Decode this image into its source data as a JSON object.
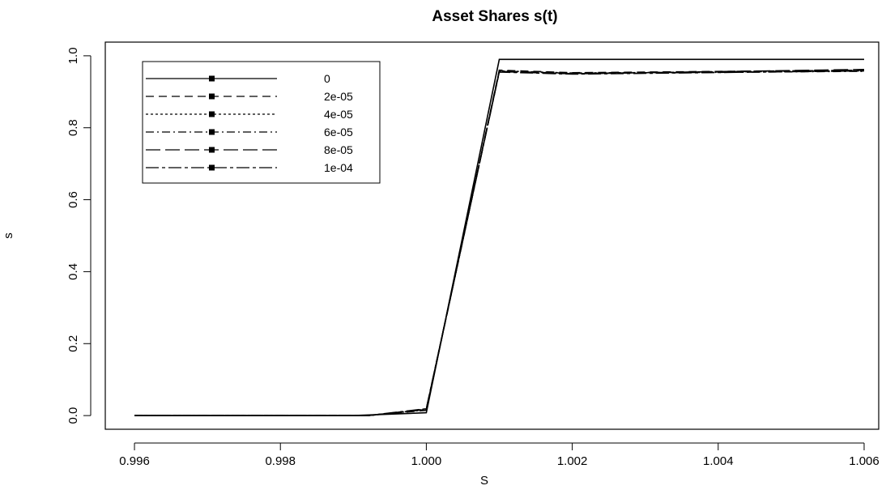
{
  "chart_data": {
    "type": "line",
    "title": "Asset Shares s(t)",
    "xlabel": "S",
    "ylabel": "s",
    "xlim": [
      0.9956,
      1.0062
    ],
    "ylim": [
      -0.038,
      1.038
    ],
    "x_ticks": [
      0.996,
      0.998,
      1.0,
      1.002,
      1.004,
      1.006
    ],
    "x_tick_labels": [
      "0.996",
      "0.998",
      "1.000",
      "1.002",
      "1.004",
      "1.006"
    ],
    "y_ticks": [
      0.0,
      0.2,
      0.4,
      0.6,
      0.8,
      1.0
    ],
    "y_tick_labels": [
      "0.0",
      "0.2",
      "0.4",
      "0.6",
      "0.8",
      "1.0"
    ],
    "grid": false,
    "legend_position": "top-left",
    "series": [
      {
        "name": "0",
        "dash": "",
        "x": [
          0.996,
          0.999,
          1.0,
          1.001,
          1.006
        ],
        "y": [
          0.0,
          0.0,
          0.008,
          0.99,
          0.99
        ]
      },
      {
        "name": "2e-05",
        "dash": "10,6",
        "x": [
          0.996,
          0.9992,
          1.0,
          1.001,
          1.002,
          1.006
        ],
        "y": [
          0.0,
          0.0,
          0.015,
          0.96,
          0.953,
          0.96
        ]
      },
      {
        "name": "4e-05",
        "dash": "3,3",
        "x": [
          0.996,
          0.9992,
          1.0,
          1.001,
          1.002,
          1.006
        ],
        "y": [
          0.0,
          0.0,
          0.016,
          0.958,
          0.952,
          0.958
        ]
      },
      {
        "name": "6e-05",
        "dash": "10,4,2,4",
        "x": [
          0.996,
          0.9992,
          1.0,
          1.001,
          1.002,
          1.006
        ],
        "y": [
          0.0,
          0.0,
          0.017,
          0.957,
          0.951,
          0.957
        ]
      },
      {
        "name": "8e-05",
        "dash": "18,6",
        "x": [
          0.996,
          0.9992,
          1.0,
          1.001,
          1.002,
          1.006
        ],
        "y": [
          0.0,
          0.0,
          0.018,
          0.956,
          0.95,
          0.962
        ]
      },
      {
        "name": "1e-04",
        "dash": "16,4,4,4",
        "x": [
          0.996,
          0.9992,
          1.0,
          1.001,
          1.002,
          1.006
        ],
        "y": [
          0.0,
          0.0,
          0.019,
          0.955,
          0.949,
          0.958
        ]
      }
    ]
  }
}
